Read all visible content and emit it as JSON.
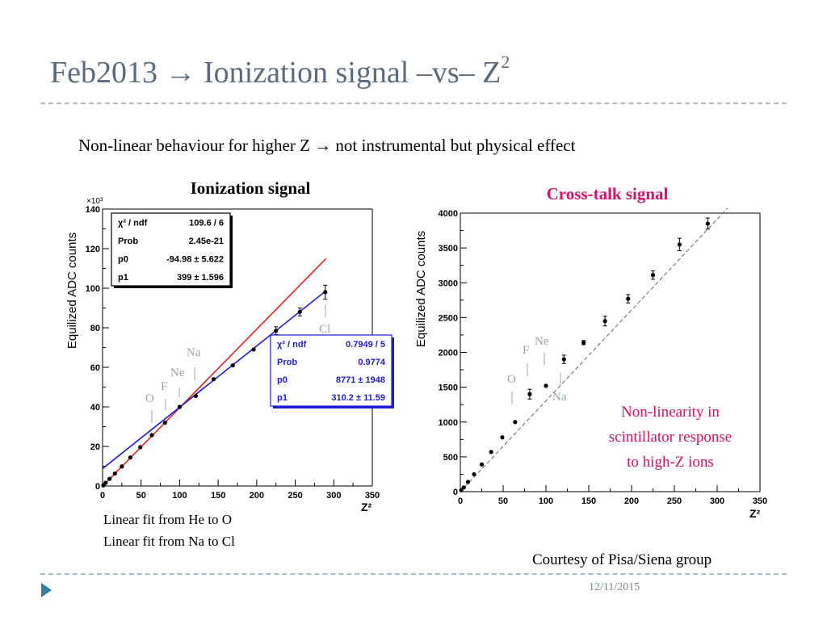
{
  "slide": {
    "title_main": "Feb2013 → Ionization signal –vs– Z",
    "title_sup": "2",
    "subtitle": "Non-linear behaviour for higher Z  → not instrumental but physical effect",
    "footer_courtesy": "Courtesy of Pisa/Siena group",
    "footer_date": "12/11/2015"
  },
  "ionization": {
    "heading": "Ionization signal",
    "ylabel": "Equilized ADC counts",
    "xlabel": "Z²",
    "y_multiplier": "×10³",
    "fit_note_red": "Linear fit from He to O",
    "fit_note_blue": "Linear fit from  Na to Cl",
    "colors": {
      "red_fit": "#e8201a",
      "blue_fit": "#1c1cd6"
    },
    "stat_box_1": [
      {
        "label": "χ² / ndf",
        "value": "109.6 / 6"
      },
      {
        "label": "Prob",
        "value": "2.45e-21"
      },
      {
        "label": "p0",
        "value": "-94.98 ± 5.622"
      },
      {
        "label": "p1",
        "value": "399  ± 1.596"
      }
    ],
    "stat_box_2": [
      {
        "label": "χ² / ndf",
        "value": "0.7949 / 5"
      },
      {
        "label": "Prob",
        "value": "0.9774"
      },
      {
        "label": "p0",
        "value": "8771 ±  1948"
      },
      {
        "label": "p1",
        "value": "310.2 ± 11.59"
      }
    ],
    "element_labels": [
      {
        "text": "O",
        "color": "#9aa3aa"
      },
      {
        "text": "F",
        "color": "#9aa3aa"
      },
      {
        "text": "Ne",
        "color": "#9aa3aa"
      },
      {
        "text": "Na",
        "color": "#9aa3aa"
      },
      {
        "text": "Cl",
        "color": "#9aa3aa"
      }
    ]
  },
  "crosstalk": {
    "heading": "Cross-talk signal",
    "heading_color": "#d6106b",
    "ylabel": "Equilized ADC counts",
    "xlabel": "Z²",
    "note": "Non-linearity in scintillator response to high-Z ions",
    "note_lines": [
      "Non-linearity in",
      "scintillator response",
      "to high-Z ions"
    ],
    "element_labels": [
      {
        "text": "O",
        "color": "#9aa3aa"
      },
      {
        "text": "F",
        "color": "#9aa3aa"
      },
      {
        "text": "Ne",
        "color": "#9aa3aa"
      },
      {
        "text": "Na",
        "color": "#9aa3aa"
      }
    ]
  },
  "chart_data": [
    {
      "type": "scatter",
      "title": "Ionization signal",
      "xlabel": "Z²",
      "ylabel": "Equilized ADC counts",
      "xlim": [
        0,
        350
      ],
      "ylim": [
        0,
        140
      ],
      "y_unit_multiplier": "×10³",
      "x_ticks": [
        0,
        50,
        100,
        150,
        200,
        250,
        300,
        350
      ],
      "y_ticks": [
        0,
        20,
        40,
        60,
        80,
        100,
        120,
        140
      ],
      "grid": false,
      "series": [
        {
          "points": [
            {
              "x": 1,
              "y": 0.3
            },
            {
              "x": 4,
              "y": 1.6
            },
            {
              "x": 9,
              "y": 3.6
            },
            {
              "x": 16,
              "y": 6.3
            },
            {
              "x": 25,
              "y": 9.9
            },
            {
              "x": 36,
              "y": 14.4
            },
            {
              "x": 49,
              "y": 19.6
            },
            {
              "x": 64,
              "y": 25.7
            },
            {
              "x": 81,
              "y": 32
            },
            {
              "x": 100,
              "y": 40
            },
            {
              "x": 121,
              "y": 45.5
            },
            {
              "x": 144,
              "y": 54
            },
            {
              "x": 169,
              "y": 61
            },
            {
              "x": 196,
              "y": 69
            },
            {
              "x": 225,
              "y": 78.5
            },
            {
              "x": 256,
              "y": 88
            },
            {
              "x": 289,
              "y": 98
            }
          ],
          "errors": [
            0,
            0,
            0,
            0,
            0,
            0,
            0,
            0,
            0,
            0,
            0,
            0,
            0,
            0,
            2,
            2,
            3.5
          ]
        }
      ],
      "fits": [
        {
          "name": "Linear fit from He to O",
          "color": "#e8201a",
          "x_range": [
            0,
            290
          ],
          "y_range": [
            -0.1,
            115
          ]
        },
        {
          "name": "Linear fit from  Na to Cl",
          "color": "#1c1cd6",
          "x_range": [
            0,
            290
          ],
          "y_range": [
            8.8,
            98.7
          ]
        }
      ]
    },
    {
      "type": "scatter",
      "title": "Cross-talk signal",
      "xlabel": "Z²",
      "ylabel": "Equilized ADC counts",
      "xlim": [
        0,
        350
      ],
      "ylim": [
        0,
        4000
      ],
      "x_ticks": [
        0,
        50,
        100,
        150,
        200,
        250,
        300,
        350
      ],
      "y_ticks": [
        0,
        500,
        1000,
        1500,
        2000,
        2500,
        3000,
        3500,
        4000
      ],
      "grid": false,
      "series": [
        {
          "points": [
            {
              "x": 1,
              "y": 20
            },
            {
              "x": 4,
              "y": 60
            },
            {
              "x": 9,
              "y": 140
            },
            {
              "x": 16,
              "y": 250
            },
            {
              "x": 25,
              "y": 390
            },
            {
              "x": 36,
              "y": 570
            },
            {
              "x": 49,
              "y": 780
            },
            {
              "x": 64,
              "y": 1000
            },
            {
              "x": 81,
              "y": 1400
            },
            {
              "x": 100,
              "y": 1520
            },
            {
              "x": 121,
              "y": 1900
            },
            {
              "x": 144,
              "y": 2140
            },
            {
              "x": 169,
              "y": 2450
            },
            {
              "x": 196,
              "y": 2770
            },
            {
              "x": 225,
              "y": 3110
            },
            {
              "x": 256,
              "y": 3550
            },
            {
              "x": 289,
              "y": 3850
            }
          ],
          "errors": [
            0,
            0,
            0,
            0,
            0,
            0,
            0,
            0,
            70,
            0,
            60,
            30,
            70,
            60,
            60,
            90,
            80
          ]
        }
      ],
      "reference_line": {
        "style": "dashed",
        "x_range": [
          0,
          312
        ],
        "y_range": [
          0,
          4000
        ]
      }
    }
  ]
}
